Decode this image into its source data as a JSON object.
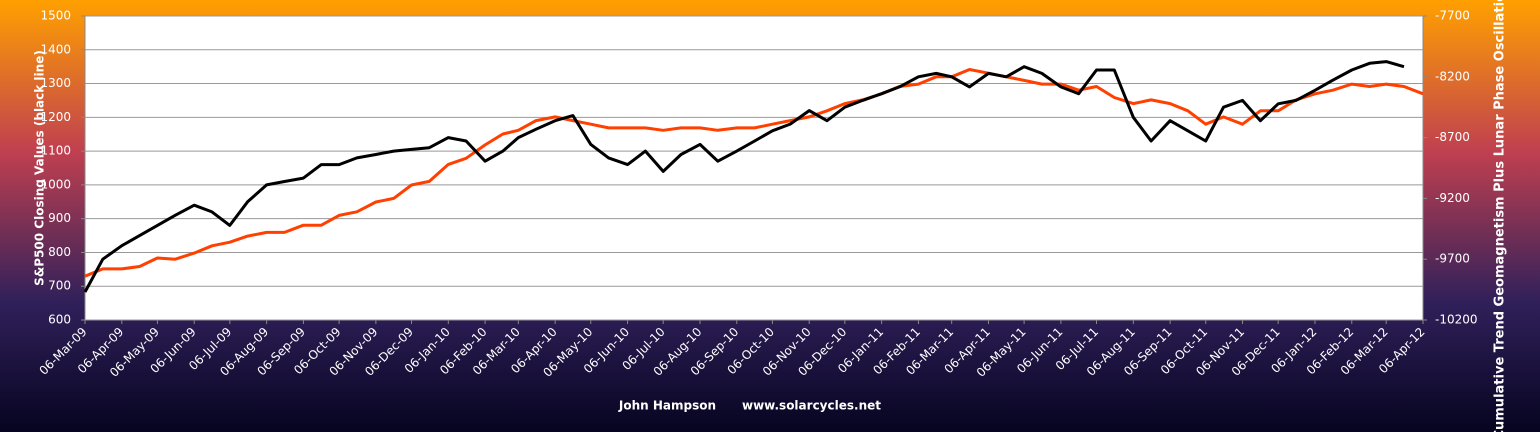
{
  "chart_data": {
    "type": "line",
    "y_label": "S&P500 Closing Values (black line)",
    "y2_label": "Cumulative Trend Geomagnetism Plus Lunar Phase Oscillation (orange Line)",
    "footer": [
      "John Hampson",
      "www.solarcycles.net"
    ],
    "grid": true,
    "x": [
      "2009-03-06",
      "2009-03-21",
      "2009-04-06",
      "2009-04-21",
      "2009-05-06",
      "2009-05-21",
      "2009-06-06",
      "2009-06-21",
      "2009-07-06",
      "2009-07-21",
      "2009-08-06",
      "2009-08-21",
      "2009-09-06",
      "2009-09-21",
      "2009-10-06",
      "2009-10-21",
      "2009-11-06",
      "2009-11-21",
      "2009-12-06",
      "2009-12-21",
      "2010-01-06",
      "2010-01-21",
      "2010-02-06",
      "2010-02-21",
      "2010-03-06",
      "2010-03-21",
      "2010-04-06",
      "2010-04-21",
      "2010-05-06",
      "2010-05-21",
      "2010-06-06",
      "2010-06-21",
      "2010-07-06",
      "2010-07-21",
      "2010-08-06",
      "2010-08-21",
      "2010-09-06",
      "2010-09-21",
      "2010-10-06",
      "2010-10-21",
      "2010-11-06",
      "2010-11-21",
      "2010-12-06",
      "2010-12-21",
      "2011-01-06",
      "2011-01-21",
      "2011-02-06",
      "2011-02-21",
      "2011-03-06",
      "2011-03-21",
      "2011-04-06",
      "2011-04-21",
      "2011-05-06",
      "2011-05-21",
      "2011-06-06",
      "2011-06-21",
      "2011-07-06",
      "2011-07-21",
      "2011-08-06",
      "2011-08-21",
      "2011-09-06",
      "2011-09-21",
      "2011-10-06",
      "2011-10-21",
      "2011-11-06",
      "2011-11-21",
      "2011-12-06",
      "2011-12-21",
      "2012-01-06",
      "2012-01-21",
      "2012-02-06",
      "2012-02-21",
      "2012-03-06",
      "2012-03-21",
      "2012-04-06"
    ],
    "xlim": [
      "2009-03-06",
      "2012-04-06"
    ],
    "xticks": [
      {
        "value": "2009-03-06",
        "label": "06-Mar-09"
      },
      {
        "value": "2009-04-06",
        "label": "06-Apr-09"
      },
      {
        "value": "2009-05-06",
        "label": "06-May-09"
      },
      {
        "value": "2009-06-06",
        "label": "06-Jun-09"
      },
      {
        "value": "2009-07-06",
        "label": "06-Jul-09"
      },
      {
        "value": "2009-08-06",
        "label": "06-Aug-09"
      },
      {
        "value": "2009-09-06",
        "label": "06-Sep-09"
      },
      {
        "value": "2009-10-06",
        "label": "06-Oct-09"
      },
      {
        "value": "2009-11-06",
        "label": "06-Nov-09"
      },
      {
        "value": "2009-12-06",
        "label": "06-Dec-09"
      },
      {
        "value": "2010-01-06",
        "label": "06-Jan-10"
      },
      {
        "value": "2010-02-06",
        "label": "06-Feb-10"
      },
      {
        "value": "2010-03-06",
        "label": "06-Mar-10"
      },
      {
        "value": "2010-04-06",
        "label": "06-Apr-10"
      },
      {
        "value": "2010-05-06",
        "label": "06-May-10"
      },
      {
        "value": "2010-06-06",
        "label": "06-Jun-10"
      },
      {
        "value": "2010-07-06",
        "label": "06-Jul-10"
      },
      {
        "value": "2010-08-06",
        "label": "06-Aug-10"
      },
      {
        "value": "2010-09-06",
        "label": "06-Sep-10"
      },
      {
        "value": "2010-10-06",
        "label": "06-Oct-10"
      },
      {
        "value": "2010-11-06",
        "label": "06-Nov-10"
      },
      {
        "value": "2010-12-06",
        "label": "06-Dec-10"
      },
      {
        "value": "2011-01-06",
        "label": "06-Jan-11"
      },
      {
        "value": "2011-02-06",
        "label": "06-Feb-11"
      },
      {
        "value": "2011-03-06",
        "label": "06-Mar-11"
      },
      {
        "value": "2011-04-06",
        "label": "06-Apr-11"
      },
      {
        "value": "2011-05-06",
        "label": "06-May-11"
      },
      {
        "value": "2011-06-06",
        "label": "06-Jun-11"
      },
      {
        "value": "2011-07-06",
        "label": "06-Jul-11"
      },
      {
        "value": "2011-08-06",
        "label": "06-Aug-11"
      },
      {
        "value": "2011-09-06",
        "label": "06-Sep-11"
      },
      {
        "value": "2011-10-06",
        "label": "06-Oct-11"
      },
      {
        "value": "2011-11-06",
        "label": "06-Nov-11"
      },
      {
        "value": "2011-12-06",
        "label": "06-Dec-11"
      },
      {
        "value": "2012-01-06",
        "label": "06-Jan-12"
      },
      {
        "value": "2012-02-06",
        "label": "06-Feb-12"
      },
      {
        "value": "2012-03-06",
        "label": "06-Mar-12"
      },
      {
        "value": "2012-04-06",
        "label": "06-Apr-12"
      }
    ],
    "ylim": [
      600,
      1500
    ],
    "yticks": [
      600,
      700,
      800,
      900,
      1000,
      1100,
      1200,
      1300,
      1400,
      1500
    ],
    "y2lim": [
      -10200,
      -7700
    ],
    "y2ticks": [
      -10200,
      -9700,
      -9200,
      -8700,
      -8200,
      -7700
    ],
    "series": [
      {
        "color": "#000000",
        "values": [
          683,
          780,
          820,
          850,
          880,
          910,
          940,
          920,
          880,
          950,
          1000,
          1010,
          1020,
          1060,
          1060,
          1080,
          1090,
          1100,
          1105,
          1110,
          1140,
          1130,
          1070,
          1100,
          1140,
          1165,
          1190,
          1205,
          1120,
          1080,
          1060,
          1100,
          1040,
          1090,
          1120,
          1070,
          1100,
          1130,
          1160,
          1180,
          1220,
          1190,
          1230,
          1250,
          1270,
          1290,
          1320,
          1330,
          1320,
          1290,
          1330,
          1320,
          1350,
          1330,
          1290,
          1270,
          1340,
          1340,
          1200,
          1130,
          1190,
          1160,
          1130,
          1230,
          1250,
          1190,
          1240,
          1250,
          1280,
          1310,
          1340,
          1360,
          1365,
          1350,
          null
        ]
      },
      {
        "color": "#ff4000",
        "axis": "y2",
        "values": [
          -9840,
          -9780,
          -9780,
          -9760,
          -9690,
          -9700,
          -9650,
          -9590,
          -9560,
          -9510,
          -9480,
          -9480,
          -9420,
          -9420,
          -9340,
          -9310,
          -9230,
          -9200,
          -9090,
          -9060,
          -8920,
          -8870,
          -8760,
          -8670,
          -8640,
          -8560,
          -8530,
          -8560,
          -8590,
          -8620,
          -8620,
          -8620,
          -8640,
          -8620,
          -8620,
          -8640,
          -8620,
          -8620,
          -8590,
          -8560,
          -8530,
          -8480,
          -8420,
          -8390,
          -8340,
          -8280,
          -8260,
          -8200,
          -8200,
          -8140,
          -8170,
          -8200,
          -8230,
          -8260,
          -8260,
          -8310,
          -8280,
          -8370,
          -8420,
          -8390,
          -8420,
          -8480,
          -8590,
          -8530,
          -8590,
          -8480,
          -8480,
          -8390,
          -8340,
          -8310,
          -8260,
          -8280,
          -8260,
          -8280,
          -8340
        ]
      }
    ]
  }
}
